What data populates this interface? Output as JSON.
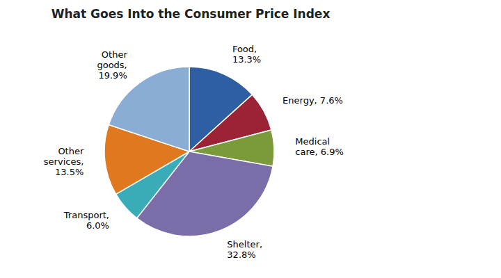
{
  "chart_data": {
    "type": "pie",
    "title": "What Goes Into the Consumer Price Index",
    "categories": [
      "Food,\n13.3%",
      "Energy, 7.6%",
      "Medical\ncare, 6.9%",
      "Shelter,\n32.8%",
      "Transport,\n6.0%",
      "Other\nservices,\n13.5%",
      "Other\ngoods,\n19.9%"
    ],
    "values": [
      13.3,
      7.6,
      6.9,
      32.8,
      6.0,
      13.5,
      19.9
    ],
    "colors": [
      "#2E5FA3",
      "#9B2335",
      "#7B9B3A",
      "#7B6EA8",
      "#3AACB8",
      "#E07820",
      "#8BADD4"
    ]
  }
}
